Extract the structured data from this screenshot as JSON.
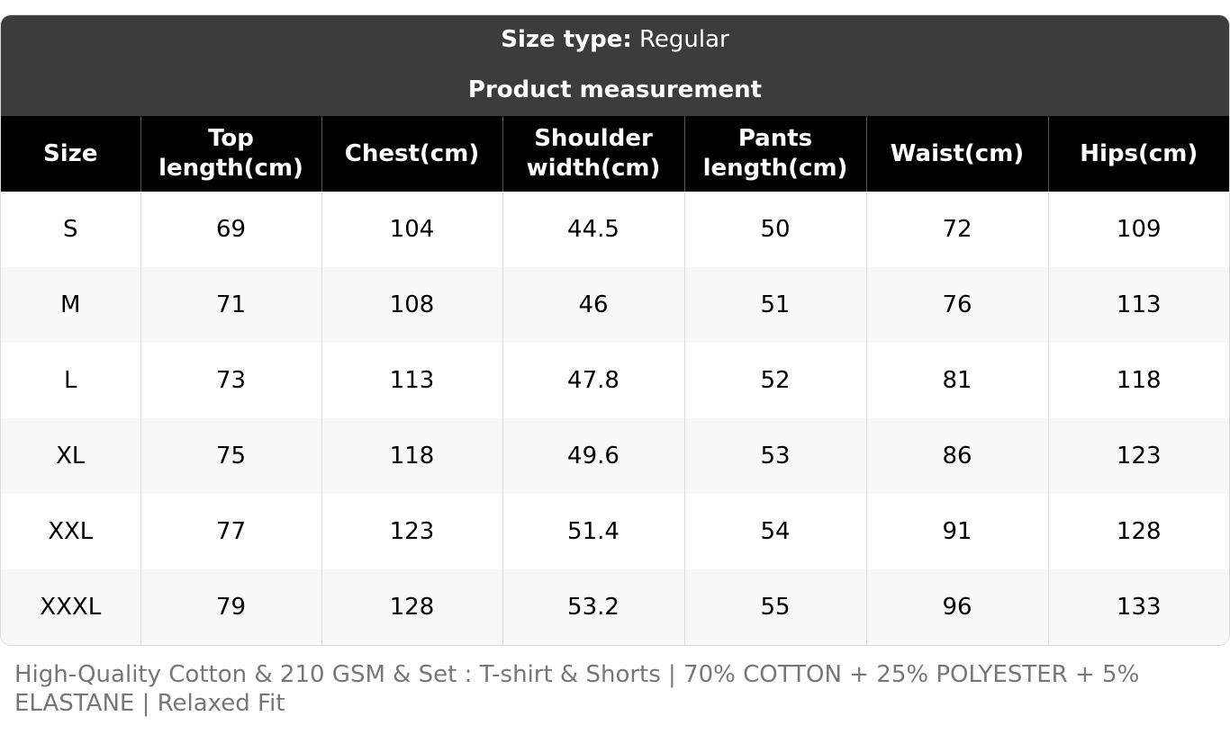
{
  "header": {
    "size_type_label": "Size type:",
    "size_type_value": "Regular",
    "subtitle": "Product measurement"
  },
  "table": {
    "columns": [
      "Size",
      "Top length(cm)",
      "Chest(cm)",
      "Shoulder width(cm)",
      "Pants length(cm)",
      "Waist(cm)",
      "Hips(cm)"
    ],
    "rows": [
      [
        "S",
        "69",
        "104",
        "44.5",
        "50",
        "72",
        "109"
      ],
      [
        "M",
        "71",
        "108",
        "46",
        "51",
        "76",
        "113"
      ],
      [
        "L",
        "73",
        "113",
        "47.8",
        "52",
        "81",
        "118"
      ],
      [
        "XL",
        "75",
        "118",
        "49.6",
        "53",
        "86",
        "123"
      ],
      [
        "XXL",
        "77",
        "123",
        "51.4",
        "54",
        "91",
        "128"
      ],
      [
        "XXXL",
        "79",
        "128",
        "53.2",
        "55",
        "96",
        "133"
      ]
    ]
  },
  "footer": {
    "note": "High-Quality Cotton & 210 GSM & Set : T-shirt & Shorts | 70% COTTON + 25% POLYESTER + 5% ELASTANE | Relaxed Fit"
  }
}
